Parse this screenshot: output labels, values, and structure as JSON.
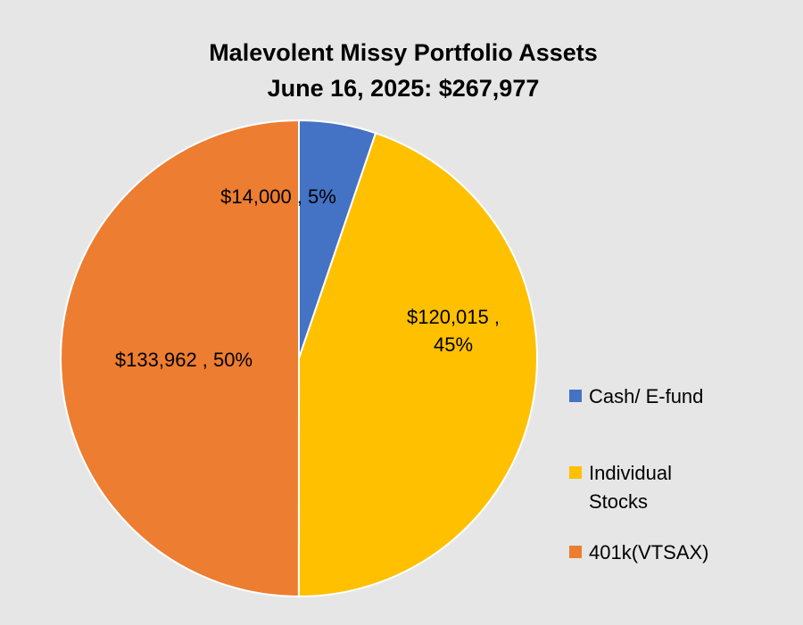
{
  "chart_data": {
    "type": "pie",
    "title": "Malevolent Missy Portfolio Assets",
    "subtitle": "June 16, 2025:  $267,977",
    "start_angle_deg": 0,
    "direction": "clockwise",
    "legend_position": "right",
    "slices": [
      {
        "name": "Cash/ E-fund",
        "legend_lines": [
          "Cash/ E-fund"
        ],
        "value": 14000,
        "percent": 5,
        "label_lines": [
          "$14,000 , 5%"
        ],
        "color": "#4472c4"
      },
      {
        "name": "Individual Stocks",
        "legend_lines": [
          "Individual",
          "Stocks"
        ],
        "value": 120015,
        "percent": 45,
        "label_lines": [
          "$120,015 ,",
          "45%"
        ],
        "color": "#ffc000"
      },
      {
        "name": "401k(VTSAX)",
        "legend_lines": [
          "401k(VTSAX)"
        ],
        "value": 133962,
        "percent": 50,
        "label_lines": [
          "$133,962 , 50%"
        ],
        "color": "#ed7d31"
      }
    ]
  }
}
